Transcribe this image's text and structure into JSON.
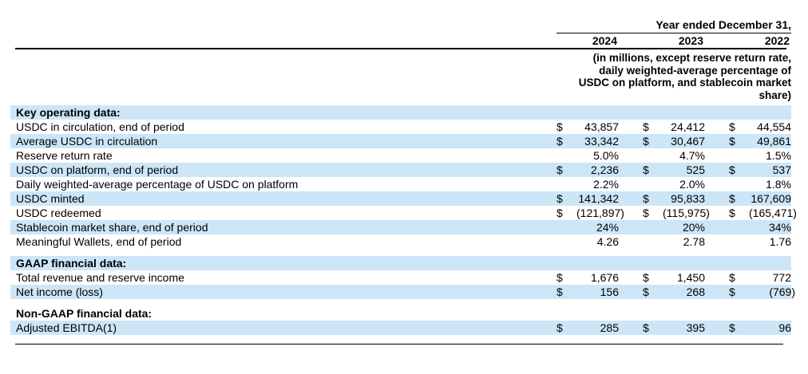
{
  "currency_symbol": "$",
  "header": {
    "period_label": "Year ended December 31,",
    "years": [
      "2024",
      "2023",
      "2022"
    ],
    "note_lines": [
      "(in millions, except reserve return rate,",
      "daily weighted-average percentage of",
      "USDC on platform, and stablecoin market",
      "share)"
    ]
  },
  "sections": [
    {
      "title": "Key operating data:",
      "title_highlight": true,
      "gap_before": false,
      "rows": [
        {
          "label": "USDC in circulation, end of period",
          "currency": true,
          "values": [
            "43,857",
            "24,412",
            "44,554"
          ],
          "highlight": false
        },
        {
          "label": "Average USDC in circulation",
          "currency": true,
          "values": [
            "33,342",
            "30,467",
            "49,861"
          ],
          "highlight": true
        },
        {
          "label": "Reserve return rate",
          "currency": false,
          "values": [
            "5.0%",
            "4.7%",
            "1.5%"
          ],
          "highlight": false
        },
        {
          "label": "USDC on platform, end of period",
          "currency": true,
          "values": [
            "2,236",
            "525",
            "537"
          ],
          "highlight": true
        },
        {
          "label": "Daily weighted-average percentage of USDC on platform",
          "currency": false,
          "values": [
            "2.2%",
            "2.0%",
            "1.8%"
          ],
          "highlight": false
        },
        {
          "label": "USDC minted",
          "currency": true,
          "values": [
            "141,342",
            "95,833",
            "167,609"
          ],
          "highlight": true
        },
        {
          "label": "USDC redeemed",
          "currency": true,
          "values": [
            "(121,897)",
            "(115,975)",
            "(165,471)"
          ],
          "highlight": false
        },
        {
          "label": "Stablecoin market share, end of period",
          "currency": false,
          "values": [
            "24%",
            "20%",
            "34%"
          ],
          "highlight": true
        },
        {
          "label": "Meaningful Wallets, end of period",
          "currency": false,
          "values": [
            "4.26",
            "2.78",
            "1.76"
          ],
          "highlight": false
        }
      ]
    },
    {
      "title": "GAAP financial data:",
      "title_highlight": true,
      "gap_before": true,
      "rows": [
        {
          "label": "Total revenue and reserve income",
          "currency": true,
          "values": [
            "1,676",
            "1,450",
            "772"
          ],
          "highlight": false
        },
        {
          "label": "Net income (loss)",
          "currency": true,
          "values": [
            "156",
            "268",
            "(769)"
          ],
          "highlight": true
        }
      ]
    },
    {
      "title": "Non-GAAP financial data:",
      "title_highlight": false,
      "gap_before": true,
      "rows": [
        {
          "label": "Adjusted EBITDA(1)",
          "currency": true,
          "values": [
            "285",
            "395",
            "96"
          ],
          "highlight": true
        }
      ]
    }
  ],
  "colors": {
    "row_highlight": "#cce6f7",
    "rule": "#000000",
    "text": "#000000"
  }
}
